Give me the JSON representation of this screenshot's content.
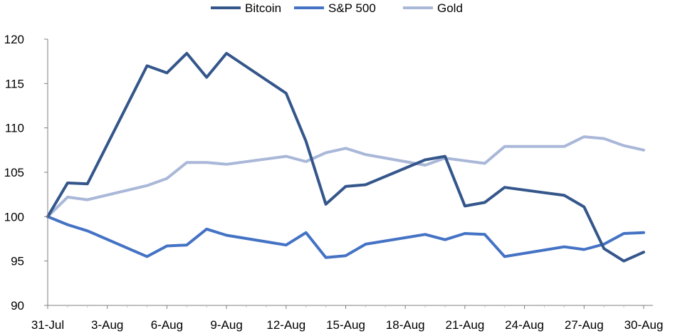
{
  "chart_data": {
    "type": "line",
    "title": "",
    "xlabel": "",
    "ylabel": "",
    "ylim": [
      90,
      120
    ],
    "yticks": [
      90,
      95,
      100,
      105,
      110,
      115,
      120
    ],
    "x_tick_labels": [
      "31-Jul",
      "3-Aug",
      "6-Aug",
      "9-Aug",
      "12-Aug",
      "15-Aug",
      "18-Aug",
      "21-Aug",
      "24-Aug",
      "27-Aug",
      "30-Aug"
    ],
    "x_tick_days": [
      0,
      3,
      6,
      9,
      12,
      15,
      18,
      21,
      24,
      27,
      30
    ],
    "x_range_days": [
      0,
      31
    ],
    "legend_position": "top-center",
    "grid": false,
    "series": [
      {
        "name": "Bitcoin",
        "color": "#34568B",
        "x_days": [
          0,
          1,
          2,
          5,
          6,
          7,
          8,
          9,
          12,
          13,
          14,
          15,
          16,
          19,
          20,
          21,
          22,
          23,
          26,
          27,
          28,
          29,
          30
        ],
        "values": [
          100,
          103.8,
          103.7,
          117.0,
          116.2,
          118.4,
          115.7,
          118.4,
          113.9,
          108.5,
          101.4,
          103.4,
          103.6,
          106.4,
          106.8,
          101.2,
          101.6,
          103.3,
          102.4,
          101.1,
          96.4,
          95.0,
          96.0
        ]
      },
      {
        "name": "S&P 500",
        "color": "#4472C4",
        "x_days": [
          0,
          1,
          2,
          5,
          6,
          7,
          8,
          9,
          12,
          13,
          14,
          15,
          16,
          19,
          20,
          21,
          22,
          23,
          26,
          27,
          28,
          29,
          30
        ],
        "values": [
          100,
          99.1,
          98.4,
          95.5,
          96.7,
          96.8,
          98.6,
          97.9,
          96.8,
          98.2,
          95.4,
          95.6,
          96.9,
          98.0,
          97.4,
          98.1,
          98.0,
          95.5,
          96.6,
          96.3,
          96.9,
          98.1,
          98.2
        ]
      },
      {
        "name": "Gold",
        "color": "#A9B7D8",
        "x_days": [
          0,
          1,
          2,
          5,
          6,
          7,
          8,
          9,
          12,
          13,
          14,
          15,
          16,
          19,
          20,
          21,
          22,
          23,
          26,
          27,
          28,
          29,
          30
        ],
        "values": [
          100,
          102.2,
          101.9,
          103.5,
          104.3,
          106.1,
          106.1,
          105.9,
          106.8,
          106.2,
          107.2,
          107.7,
          107.0,
          105.8,
          106.6,
          106.3,
          106.0,
          107.9,
          107.9,
          109.0,
          108.8,
          108.0,
          107.5
        ]
      }
    ]
  }
}
